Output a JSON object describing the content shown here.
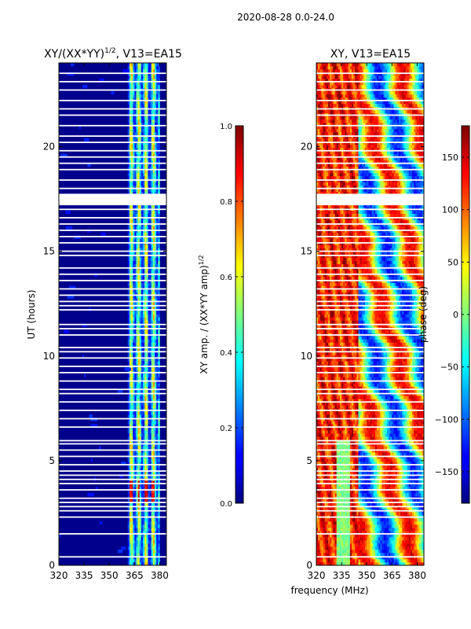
{
  "suptitle": "2020-08-28 0.0-24.0",
  "shared_xlabel": "frequency (MHz)",
  "chart_data": [
    {
      "type": "heatmap",
      "title": "XY/(XX*YY)",
      "title_exponent": "1/2",
      "title_suffix": ", V13=EA15",
      "xlabel": "",
      "ylabel": "UT (hours)",
      "xlim": [
        320,
        384
      ],
      "ylim": [
        0,
        24
      ],
      "xticks": [
        320,
        335,
        350,
        365,
        380
      ],
      "yticks": [
        0,
        5,
        10,
        15,
        20
      ],
      "colorbar": {
        "label": "XY amp. / (XX*YY amp)",
        "label_exponent": "1/2",
        "range": [
          0.0,
          1.0
        ],
        "ticks": [
          "0.0",
          "0.2",
          "0.4",
          "0.6",
          "0.8",
          "1.0"
        ]
      }
    },
    {
      "type": "heatmap",
      "title": "XY, V13=EA15",
      "xlabel": "frequency (MHz)",
      "ylabel": "",
      "xlim": [
        320,
        384
      ],
      "ylim": [
        0,
        24
      ],
      "xticks": [
        320,
        335,
        350,
        365,
        380
      ],
      "yticks": [
        0,
        5,
        10,
        15,
        20
      ],
      "colorbar": {
        "label": "phase (deg)",
        "range": [
          -180,
          180
        ],
        "ticks": [
          "150",
          "100",
          "50",
          "0",
          "−50",
          "−100",
          "−150"
        ]
      }
    }
  ],
  "flagged_rows_hours": [
    0.4,
    1.5,
    2.3,
    2.6,
    2.8,
    3.0,
    3.2,
    3.6,
    3.9,
    4.1,
    4.3,
    4.5,
    4.8,
    5.2,
    5.5,
    5.8,
    5.95,
    6.6,
    7.0,
    7.4,
    7.8,
    8.2,
    8.4,
    8.8,
    9.2,
    9.5,
    9.9,
    10.2,
    10.4,
    11.0,
    11.3,
    11.5,
    12.2,
    12.4,
    12.6,
    12.9,
    13.2,
    13.6,
    13.9,
    14.2,
    14.8,
    15.0,
    15.4,
    15.7,
    16.0,
    16.3,
    16.6,
    17.0,
    17.5,
    17.7,
    18.0,
    18.4,
    18.9,
    19.2,
    19.5,
    19.8,
    20.2,
    20.5,
    21.0,
    21.5,
    21.8,
    22.2,
    22.7,
    23.1,
    23.5
  ],
  "flagged_block_hours": [
    17.2,
    17.75
  ]
}
